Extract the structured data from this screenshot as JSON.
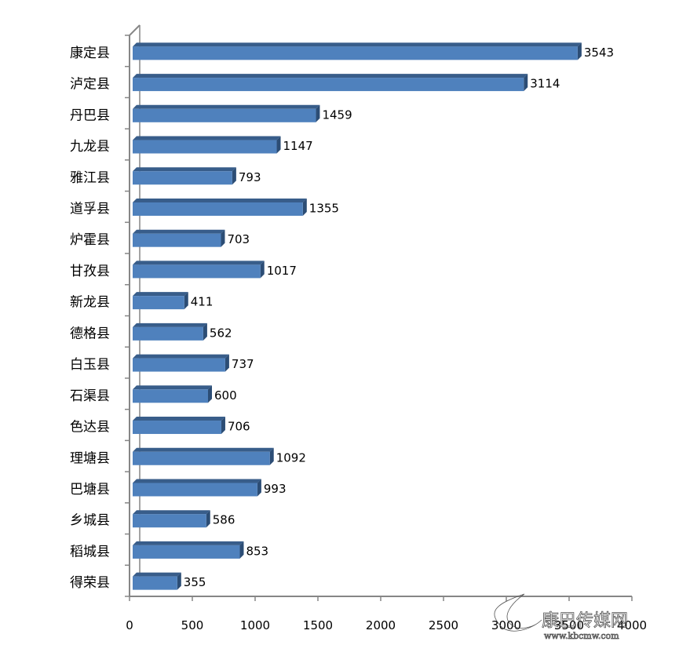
{
  "chart_data": {
    "type": "bar",
    "orientation": "horizontal",
    "style": "3d",
    "categories": [
      "康定县",
      "泸定县",
      "丹巴县",
      "九龙县",
      "雅江县",
      "道孚县",
      "炉霍县",
      "甘孜县",
      "新龙县",
      "德格县",
      "白玉县",
      "石渠县",
      "色达县",
      "理塘县",
      "巴塘县",
      "乡城县",
      "稻城县",
      "得荣县"
    ],
    "values": [
      3543,
      3114,
      1459,
      1147,
      793,
      1355,
      703,
      1017,
      411,
      562,
      737,
      600,
      706,
      1092,
      993,
      586,
      853,
      355
    ],
    "xlim": [
      0,
      4000
    ],
    "xticks": [
      "0",
      "500",
      "1000",
      "1500",
      "2000",
      "2500",
      "3000",
      "3500",
      "4000"
    ],
    "grid": false,
    "legend": "none",
    "data_labels": true,
    "colors": {
      "bar_front": "#4f81bd",
      "bar_top": "#385d8a",
      "bar_side": "#2c4d75",
      "axis": "#868686"
    }
  },
  "watermark": {
    "name": "康巴传媒网",
    "url": "www.kbcmw.com"
  }
}
